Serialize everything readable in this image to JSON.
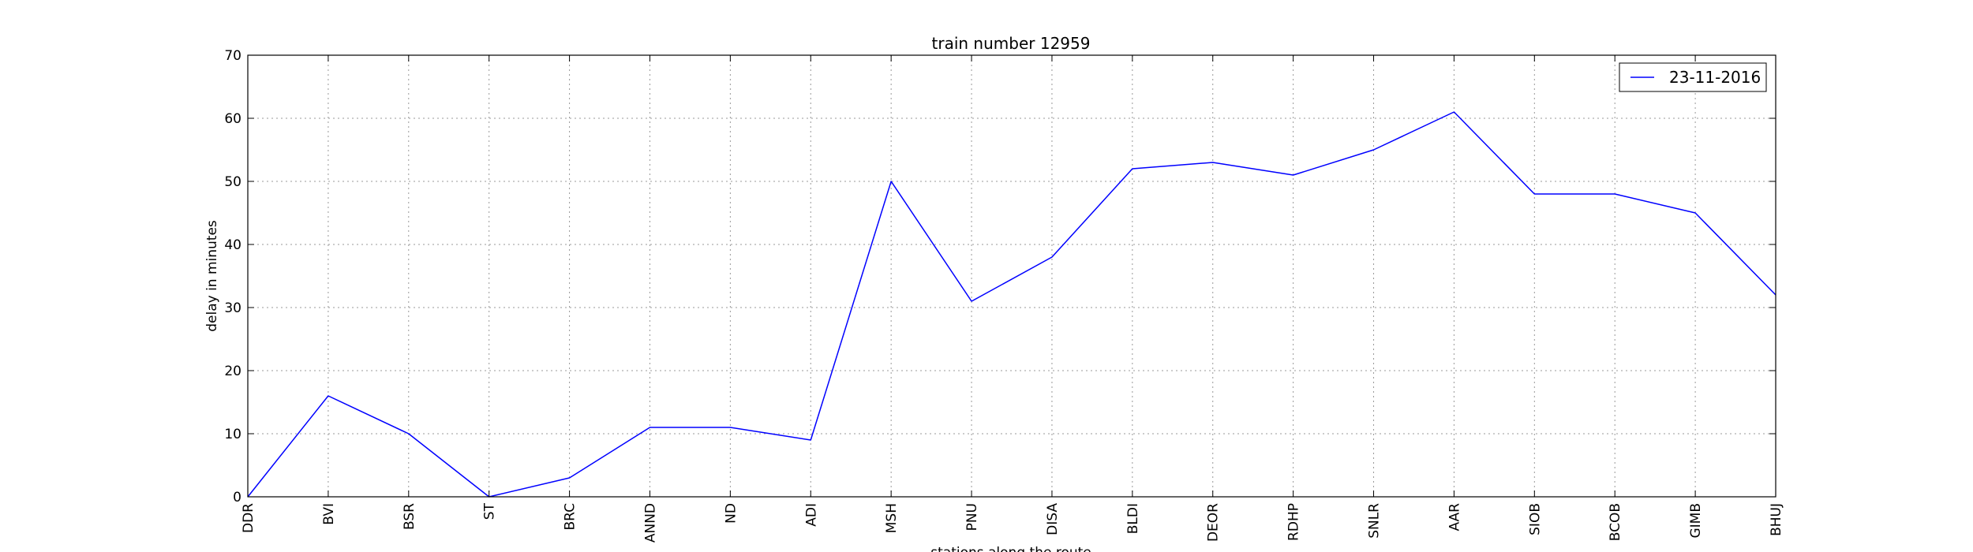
{
  "chart_data": {
    "type": "line",
    "title": "train number 12959",
    "xlabel": "stations along the route",
    "ylabel": "delay in minutes",
    "categories": [
      "DDR",
      "BVI",
      "BSR",
      "ST",
      "BRC",
      "ANND",
      "ND",
      "ADI",
      "MSH",
      "PNU",
      "DISA",
      "BLDI",
      "DEOR",
      "RDHP",
      "SNLR",
      "AAR",
      "SIOB",
      "BCOB",
      "GIMB",
      "BHUJ"
    ],
    "series": [
      {
        "name": "23-11-2016",
        "color": "#0000ff",
        "values": [
          0,
          16,
          10,
          0,
          3,
          11,
          11,
          9,
          50,
          31,
          38,
          52,
          53,
          51,
          55,
          61,
          48,
          48,
          45,
          32
        ]
      }
    ],
    "ylim": [
      0,
      70
    ],
    "yticks": [
      0,
      10,
      20,
      30,
      40,
      50,
      60,
      70
    ],
    "grid": true,
    "legend_position": "top-right"
  }
}
